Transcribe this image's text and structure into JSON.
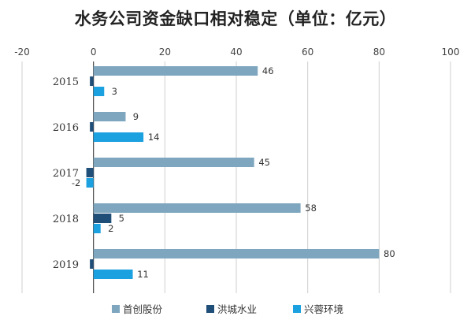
{
  "chart_data": {
    "type": "bar",
    "orientation": "horizontal",
    "title": "水务公司资金缺口相对稳定（单位：亿元）",
    "categories": [
      "2015",
      "2016",
      "2017",
      "2018",
      "2019"
    ],
    "series": [
      {
        "name": "首创股份",
        "color": "#7ea6be",
        "values": [
          46,
          9,
          45,
          58,
          80
        ]
      },
      {
        "name": "洪城水业",
        "color": "#1f4e79",
        "values": [
          -1,
          -1,
          -2,
          5,
          -1
        ]
      },
      {
        "name": "兴蓉环境",
        "color": "#1ba0e0",
        "values": [
          3,
          14,
          -2,
          2,
          11
        ]
      }
    ],
    "data_labels": [
      [
        "46",
        "",
        "3"
      ],
      [
        "9",
        "",
        "14"
      ],
      [
        "45",
        "",
        "-2"
      ],
      [
        "58",
        "5",
        "2"
      ],
      [
        "80",
        "",
        "11"
      ]
    ],
    "xlim": [
      -20,
      100
    ],
    "xticks": [
      -20,
      0,
      20,
      40,
      60,
      80,
      100
    ],
    "xtick_labels": [
      "-20",
      "0",
      "20",
      "40",
      "60",
      "80",
      "100"
    ],
    "axis_position": "top",
    "grid": "vertical",
    "legend_position": "bottom"
  }
}
